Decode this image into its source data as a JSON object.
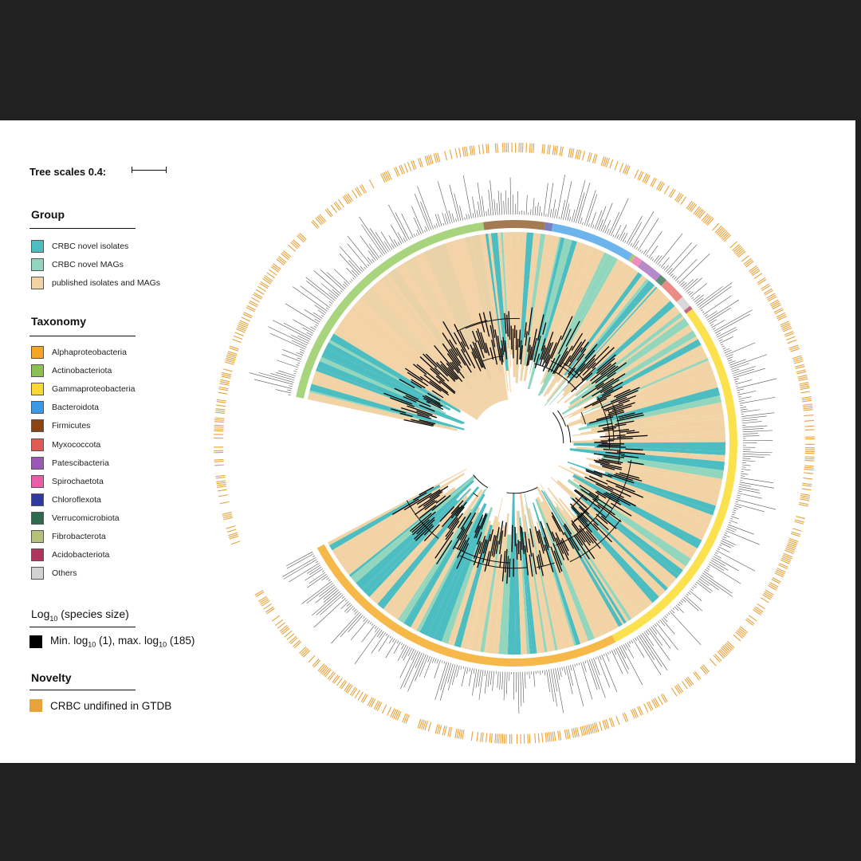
{
  "tree_scale": {
    "label": "Tree scales 0.4:"
  },
  "legend": {
    "group": {
      "title": "Group",
      "items": [
        {
          "label": "CRBC novel isolates",
          "color": "#4cbdc0"
        },
        {
          "label": "CRBC novel MAGs",
          "color": "#92d6bd"
        },
        {
          "label": "published isolates and MAGs",
          "color": "#f2d3a6"
        }
      ]
    },
    "taxonomy": {
      "title": "Taxonomy",
      "items": [
        {
          "label": "Alphaproteobacteria",
          "color": "#f5a623"
        },
        {
          "label": "Actinobacteriota",
          "color": "#8cc152"
        },
        {
          "label": "Gammaproteobacteria",
          "color": "#fdd835"
        },
        {
          "label": "Bacteroidota",
          "color": "#3b9ae6"
        },
        {
          "label": "Firmicutes",
          "color": "#8b4513"
        },
        {
          "label": "Myxococcota",
          "color": "#e05b55"
        },
        {
          "label": "Patescibacteria",
          "color": "#9b59b6"
        },
        {
          "label": "Spirochaetota",
          "color": "#ec5ca8"
        },
        {
          "label": "Chloroflexota",
          "color": "#2e3a9e"
        },
        {
          "label": "Verrucomicrobiota",
          "color": "#2d6a4f"
        },
        {
          "label": "Fibrobacterota",
          "color": "#b5c27c"
        },
        {
          "label": "Acidobacteriota",
          "color": "#b0345c"
        },
        {
          "label": "Others",
          "color": "#d3d3d3"
        }
      ]
    },
    "species_size": {
      "title_pre": "Log",
      "title_sub": "10",
      "title_post": " (species size)",
      "item": {
        "p1": "Min. log",
        "s1": "10",
        "p2": " (1), max. log",
        "s2": "10",
        "p3": " (185)",
        "color": "#000000"
      }
    },
    "novelty": {
      "title": "Novelty",
      "item": {
        "label": "CRBC undifined in GTDB",
        "color": "#e8a23a"
      }
    }
  },
  "tree_rings": [
    {
      "taxon": "Actinobacteriota",
      "start_deg": 192,
      "end_deg": 262,
      "color": "#a8d47d"
    },
    {
      "taxon": "Firmicutes",
      "start_deg": 262,
      "end_deg": 278,
      "color": "#a47a52"
    },
    {
      "taxon": "Chloroflexota",
      "start_deg": 278,
      "end_deg": 280,
      "color": "#7a7fbf"
    },
    {
      "taxon": "Bacteroidota",
      "start_deg": 280,
      "end_deg": 302,
      "color": "#6eb4ec"
    },
    {
      "taxon": "Fibrobacterota",
      "start_deg": 302,
      "end_deg": 303,
      "color": "#b5c27c"
    },
    {
      "taxon": "Spirochaetota",
      "start_deg": 303,
      "end_deg": 305,
      "color": "#f08bbf"
    },
    {
      "taxon": "Patescibacteria",
      "start_deg": 305,
      "end_deg": 311,
      "color": "#b889c9"
    },
    {
      "taxon": "Verrucomicrobiota",
      "start_deg": 311,
      "end_deg": 313,
      "color": "#5c8f77"
    },
    {
      "taxon": "Myxococcota",
      "start_deg": 313,
      "end_deg": 319,
      "color": "#ec8a85"
    },
    {
      "taxon": "Others",
      "start_deg": 319,
      "end_deg": 322,
      "color": "#d8d8d8"
    },
    {
      "taxon": "Acidobacteriota",
      "start_deg": 322,
      "end_deg": 323,
      "color": "#c46a86"
    },
    {
      "taxon": "Gammaproteobacteria",
      "start_deg": 323,
      "end_deg": 423,
      "color": "#fce14f"
    },
    {
      "taxon": "Alphaproteobacteria",
      "start_deg": 423,
      "end_deg": 512,
      "color": "#f7b84a"
    }
  ],
  "tree_gap": {
    "start_deg": 152,
    "end_deg": 192
  }
}
